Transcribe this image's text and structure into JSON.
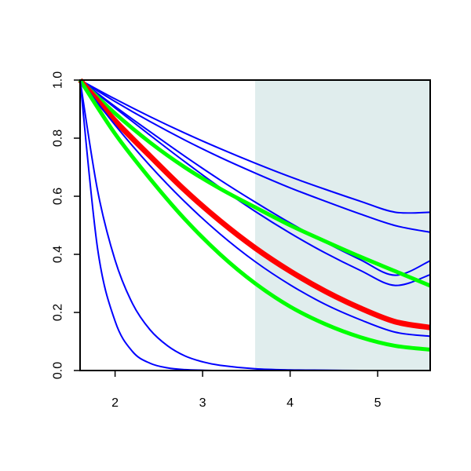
{
  "chart_data": {
    "type": "line",
    "title": "",
    "xlabel": "",
    "ylabel": "",
    "xlim": [
      1.6,
      5.6
    ],
    "ylim": [
      0.0,
      1.0
    ],
    "x_ticks": [
      2,
      3,
      4,
      5
    ],
    "x_tick_labels": [
      "2",
      "3",
      "4",
      "5"
    ],
    "y_ticks": [
      0.0,
      0.2,
      0.4,
      0.6,
      0.8,
      1.0
    ],
    "y_tick_labels": [
      "0.0",
      "0.2",
      "0.4",
      "0.6",
      "0.8",
      "1.0"
    ],
    "grid": false,
    "legend": "none",
    "shaded_region": {
      "x_start": 3.6,
      "x_end": 5.6,
      "color": "#e0eded"
    },
    "series": [
      {
        "color": "#0000ff",
        "kind": "thin",
        "x": [
          1.6,
          2.0,
          2.4,
          2.8,
          3.2,
          3.6,
          4.0,
          4.4,
          4.8,
          5.2,
          5.6
        ],
        "y": [
          1.0,
          0.935,
          0.874,
          0.817,
          0.764,
          0.714,
          0.667,
          0.624,
          0.583,
          0.545,
          0.545
        ]
      },
      {
        "color": "#0000ff",
        "kind": "thin",
        "x": [
          1.6,
          2.0,
          2.4,
          2.8,
          3.2,
          3.6,
          4.0,
          4.4,
          4.8,
          5.2,
          5.6
        ],
        "y": [
          1.0,
          0.926,
          0.857,
          0.793,
          0.734,
          0.68,
          0.629,
          0.583,
          0.539,
          0.499,
          0.476
        ]
      },
      {
        "color": "#0000ff",
        "kind": "thin",
        "x": [
          1.6,
          2.0,
          2.4,
          2.8,
          3.2,
          3.6,
          4.0,
          4.4,
          4.8,
          5.2,
          5.6
        ],
        "y": [
          1.0,
          0.909,
          0.822,
          0.737,
          0.656,
          0.58,
          0.508,
          0.442,
          0.382,
          0.328,
          0.378
        ]
      },
      {
        "color": "#0000ff",
        "kind": "thin",
        "x": [
          1.6,
          2.0,
          2.4,
          2.8,
          3.2,
          3.6,
          4.0,
          4.4,
          4.8,
          5.2,
          5.6
        ],
        "y": [
          1.0,
          0.904,
          0.81,
          0.718,
          0.63,
          0.548,
          0.473,
          0.405,
          0.345,
          0.293,
          0.33
        ]
      },
      {
        "color": "#00ff00",
        "kind": "thick",
        "x": [
          1.6,
          2.0,
          2.4,
          2.8,
          3.2,
          3.6,
          4.0,
          4.4,
          4.8,
          5.2,
          5.6
        ],
        "y": [
          1.0,
          0.885,
          0.785,
          0.699,
          0.626,
          0.562,
          0.5,
          0.445,
          0.392,
          0.342,
          0.292
        ]
      },
      {
        "color": "#ff0000",
        "kind": "red",
        "x": [
          1.6,
          2.0,
          2.4,
          2.8,
          3.2,
          3.6,
          4.0,
          4.4,
          4.8,
          5.2,
          5.6
        ],
        "y": [
          1.0,
          0.86,
          0.738,
          0.62,
          0.515,
          0.422,
          0.342,
          0.273,
          0.215,
          0.168,
          0.148
        ]
      },
      {
        "color": "#0000ff",
        "kind": "thin",
        "x": [
          1.6,
          2.0,
          2.4,
          2.8,
          3.2,
          3.6,
          4.0,
          4.4,
          4.8,
          5.2,
          5.6
        ],
        "y": [
          1.0,
          0.845,
          0.705,
          0.58,
          0.47,
          0.375,
          0.295,
          0.228,
          0.175,
          0.132,
          0.118
        ]
      },
      {
        "color": "#00ff00",
        "kind": "thick",
        "x": [
          1.6,
          2.0,
          2.4,
          2.8,
          3.2,
          3.6,
          4.0,
          4.4,
          4.8,
          5.2,
          5.6
        ],
        "y": [
          1.0,
          0.815,
          0.66,
          0.52,
          0.4,
          0.3,
          0.22,
          0.16,
          0.115,
          0.085,
          0.072
        ]
      },
      {
        "color": "#0000ff",
        "kind": "thin",
        "x": [
          1.6,
          1.8,
          2.0,
          2.2,
          2.4,
          2.6,
          2.8,
          3.0,
          3.2,
          3.6,
          4.0,
          4.4,
          4.8,
          5.2,
          5.6
        ],
        "y": [
          1.0,
          0.62,
          0.38,
          0.23,
          0.14,
          0.085,
          0.05,
          0.03,
          0.018,
          0.006,
          0.002,
          0.001,
          0.0,
          0.0,
          0.0
        ]
      },
      {
        "color": "#0000ff",
        "kind": "thin",
        "x": [
          1.6,
          1.8,
          2.0,
          2.2,
          2.4,
          2.6,
          2.8,
          3.0,
          3.2,
          3.6,
          4.0,
          4.4,
          4.8,
          5.2,
          5.6
        ],
        "y": [
          1.0,
          0.42,
          0.17,
          0.065,
          0.025,
          0.009,
          0.003,
          0.001,
          0.0,
          0.0,
          0.0,
          0.0,
          0.0,
          0.0,
          0.0
        ]
      }
    ]
  }
}
